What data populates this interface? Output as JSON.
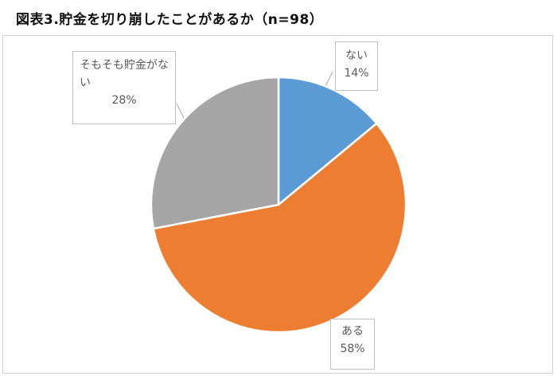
{
  "title": "図表3.貯金を切り崩したことがあるか（n=98）",
  "chart_data": {
    "type": "pie",
    "title": "図表3.貯金を切り崩したことがあるか（n=98）",
    "slices": [
      {
        "label": "ない",
        "value": 14,
        "color": "#5b9bd5"
      },
      {
        "label": "ある",
        "value": 58,
        "color": "#ed7d31"
      },
      {
        "label": "そもそも貯金がない",
        "value": 28,
        "color": "#a5a5a5"
      }
    ],
    "start_angle_deg": 0,
    "direction": "clockwise"
  },
  "labels": {
    "nai": {
      "name": "ない",
      "pct": "14%"
    },
    "aru": {
      "name": "ある",
      "pct": "58%"
    },
    "sonomo": {
      "name1": "そもそも貯金がな",
      "name2": "い",
      "pct": "28%"
    }
  }
}
